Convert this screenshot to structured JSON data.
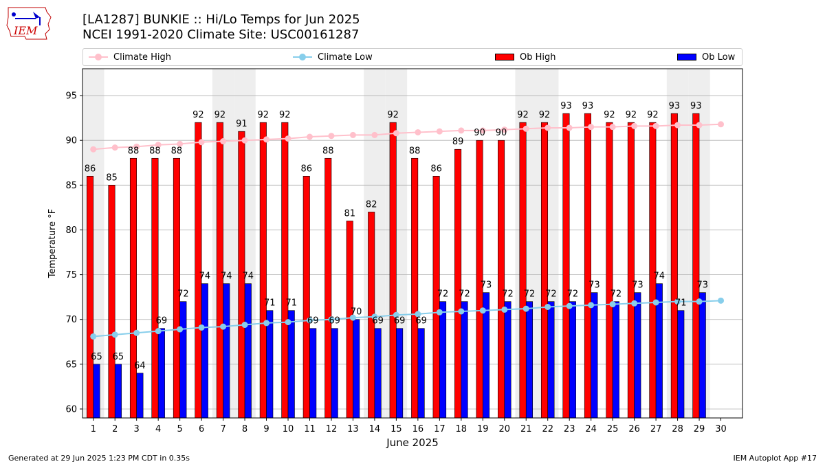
{
  "header": {
    "logo_text": "IEM",
    "title_line1": "[LA1287] BUNKIE :: Hi/Lo Temps for Jun 2025",
    "title_line2": "NCEI 1991-2020 Climate Site: USC00161287"
  },
  "legend": {
    "climate_high": "Climate High",
    "climate_low": "Climate Low",
    "ob_high": "Ob High",
    "ob_low": "Ob Low"
  },
  "colors": {
    "ob_high": "#ff0000",
    "ob_low": "#0000ff",
    "climate_high": "#ffc0cb",
    "climate_low": "#87ceeb",
    "weekend_shade": "#eeeeee",
    "grid": "#b0b0b0"
  },
  "footer": {
    "generated": "Generated at 29 Jun 2025 1:23 PM CDT in 0.35s",
    "app": "IEM Autoplot App #17"
  },
  "chart_data": {
    "type": "bar",
    "title": "[LA1287] BUNKIE :: Hi/Lo Temps for Jun 2025",
    "subtitle": "NCEI 1991-2020 Climate Site: USC00161287",
    "xlabel": "June 2025",
    "ylabel": "Temperature °F",
    "ylim": [
      59,
      98
    ],
    "yticks": [
      60,
      65,
      70,
      75,
      80,
      85,
      90,
      95
    ],
    "grid": true,
    "legend_position": "top",
    "categories": [
      "1",
      "2",
      "3",
      "4",
      "5",
      "6",
      "7",
      "8",
      "9",
      "10",
      "11",
      "12",
      "13",
      "14",
      "15",
      "16",
      "17",
      "18",
      "19",
      "20",
      "21",
      "22",
      "23",
      "24",
      "25",
      "26",
      "27",
      "28",
      "29",
      "30"
    ],
    "shaded_days": [
      1,
      7,
      8,
      14,
      15,
      21,
      22,
      28,
      29
    ],
    "series": [
      {
        "name": "Ob High",
        "kind": "bar",
        "values": [
          86,
          85,
          88,
          88,
          88,
          92,
          92,
          91,
          92,
          92,
          86,
          88,
          81,
          82,
          92,
          88,
          86,
          89,
          90,
          90,
          92,
          92,
          93,
          93,
          92,
          92,
          92,
          93,
          93,
          null
        ]
      },
      {
        "name": "Ob Low",
        "kind": "bar",
        "values": [
          65,
          65,
          64,
          69,
          72,
          74,
          74,
          74,
          71,
          71,
          69,
          69,
          70,
          69,
          69,
          69,
          72,
          72,
          73,
          72,
          72,
          72,
          72,
          73,
          72,
          73,
          74,
          71,
          73,
          null
        ]
      },
      {
        "name": "Climate High",
        "kind": "line",
        "values": [
          89.0,
          89.2,
          89.3,
          89.5,
          89.6,
          89.8,
          89.9,
          90.0,
          90.1,
          90.2,
          90.4,
          90.5,
          90.6,
          90.6,
          90.8,
          90.9,
          91.0,
          91.1,
          91.1,
          91.2,
          91.3,
          91.4,
          91.4,
          91.5,
          91.5,
          91.6,
          91.6,
          91.7,
          91.7,
          91.8
        ]
      },
      {
        "name": "Climate Low",
        "kind": "line",
        "values": [
          68.1,
          68.3,
          68.5,
          68.7,
          68.9,
          69.1,
          69.2,
          69.4,
          69.6,
          69.7,
          69.9,
          70.0,
          70.2,
          70.3,
          70.5,
          70.6,
          70.8,
          70.9,
          71.0,
          71.1,
          71.2,
          71.4,
          71.5,
          71.6,
          71.7,
          71.8,
          71.9,
          72.0,
          72.0,
          72.1
        ]
      }
    ]
  }
}
